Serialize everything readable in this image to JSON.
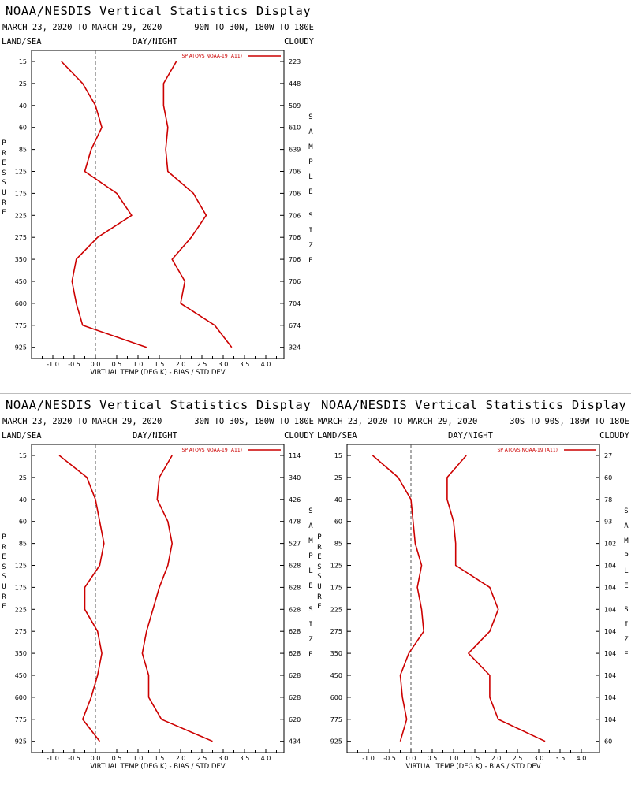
{
  "chart_data": [
    {
      "type": "line",
      "title": "NOAA/NESDIS Vertical Statistics Display",
      "date_range": "MARCH 23, 2020 TO MARCH 29, 2020",
      "region": "90N TO 30N, 180W TO 180E",
      "surface": "LAND/SEA",
      "time_of_day": "DAY/NIGHT",
      "sky": "CLOUDY",
      "xlabel": "VIRTUAL TEMP (DEG K) - BIAS / STD DEV",
      "ylabel": "PRESSURE",
      "right_label": "SAMPLE SIZE",
      "legend": "SP ATOVS NOAA-19 (A11)",
      "legend_position": "top-right",
      "xlim": [
        -1.5,
        4.5
      ],
      "x_ticks": [
        "-1.0",
        "-0.5",
        "0.0",
        "0.5",
        "1.0",
        "1.5",
        "2.0",
        "2.5",
        "3.0",
        "3.5",
        "4.0"
      ],
      "pressure_levels": [
        "15",
        "25",
        "40",
        "60",
        "85",
        "125",
        "175",
        "225",
        "275",
        "350",
        "450",
        "600",
        "775",
        "925"
      ],
      "sample_size": [
        "223",
        "448",
        "509",
        "610",
        "639",
        "706",
        "706",
        "706",
        "706",
        "706",
        "706",
        "704",
        "674",
        "324"
      ],
      "series": [
        {
          "role": "bias",
          "values": [
            -0.8,
            -0.3,
            0.0,
            0.15,
            -0.1,
            -0.25,
            0.5,
            0.85,
            0.05,
            -0.45,
            -0.55,
            -0.45,
            -0.3,
            1.2
          ]
        },
        {
          "role": "std_dev",
          "values": [
            1.9,
            1.6,
            1.6,
            1.7,
            1.65,
            1.7,
            2.3,
            2.6,
            2.25,
            1.8,
            2.1,
            2.0,
            2.8,
            3.2
          ]
        }
      ]
    },
    {
      "type": "line",
      "title": "NOAA/NESDIS Vertical Statistics Display",
      "date_range": "MARCH 23, 2020 TO MARCH 29, 2020",
      "region": "30N TO 30S, 180W TO 180E",
      "surface": "LAND/SEA",
      "time_of_day": "DAY/NIGHT",
      "sky": "CLOUDY",
      "xlabel": "VIRTUAL TEMP (DEG K) - BIAS / STD DEV",
      "ylabel": "PRESSURE",
      "right_label": "SAMPLE SIZE",
      "legend": "SP ATOVS NOAA-19 (A11)",
      "legend_position": "top-right",
      "xlim": [
        -1.5,
        4.5
      ],
      "x_ticks": [
        "-1.0",
        "-0.5",
        "0.0",
        "0.5",
        "1.0",
        "1.5",
        "2.0",
        "2.5",
        "3.0",
        "3.5",
        "4.0"
      ],
      "pressure_levels": [
        "15",
        "25",
        "40",
        "60",
        "85",
        "125",
        "175",
        "225",
        "275",
        "350",
        "450",
        "600",
        "775",
        "925"
      ],
      "sample_size": [
        "114",
        "340",
        "426",
        "478",
        "527",
        "628",
        "628",
        "628",
        "628",
        "628",
        "628",
        "628",
        "620",
        "434"
      ],
      "series": [
        {
          "role": "bias",
          "values": [
            -0.85,
            -0.2,
            0.0,
            0.1,
            0.2,
            0.1,
            -0.25,
            -0.25,
            0.05,
            0.15,
            0.05,
            -0.1,
            -0.3,
            0.1
          ]
        },
        {
          "role": "std_dev",
          "values": [
            1.8,
            1.5,
            1.45,
            1.7,
            1.8,
            1.7,
            1.5,
            1.35,
            1.2,
            1.1,
            1.25,
            1.25,
            1.55,
            2.75
          ]
        }
      ]
    },
    {
      "type": "line",
      "title": "NOAA/NESDIS Vertical Statistics Display",
      "date_range": "MARCH 23, 2020 TO MARCH 29, 2020",
      "region": "30S TO 90S, 180W TO 180E",
      "surface": "LAND/SEA",
      "time_of_day": "DAY/NIGHT",
      "sky": "CLOUDY",
      "xlabel": "VIRTUAL TEMP (DEG K) - BIAS / STD DEV",
      "ylabel": "PRESSURE",
      "right_label": "SAMPLE SIZE",
      "legend": "SP ATOVS NOAA-19 (A11)",
      "legend_position": "top-right",
      "xlim": [
        -1.5,
        4.5
      ],
      "x_ticks": [
        "-1.0",
        "-0.5",
        "0.0",
        "0.5",
        "1.0",
        "1.5",
        "2.0",
        "2.5",
        "3.0",
        "3.5",
        "4.0"
      ],
      "pressure_levels": [
        "15",
        "25",
        "40",
        "60",
        "85",
        "125",
        "175",
        "225",
        "275",
        "350",
        "450",
        "600",
        "775",
        "925"
      ],
      "sample_size": [
        "27",
        "60",
        "78",
        "93",
        "102",
        "104",
        "104",
        "104",
        "104",
        "104",
        "104",
        "104",
        "104",
        "60"
      ],
      "series": [
        {
          "role": "bias",
          "values": [
            -0.9,
            -0.3,
            0.0,
            0.05,
            0.1,
            0.25,
            0.15,
            0.25,
            0.3,
            -0.05,
            -0.25,
            -0.2,
            -0.1,
            -0.25
          ]
        },
        {
          "role": "std_dev",
          "values": [
            1.3,
            0.85,
            0.85,
            1.0,
            1.05,
            1.05,
            1.85,
            2.05,
            1.85,
            1.35,
            1.85,
            1.85,
            2.05,
            3.15
          ]
        }
      ]
    }
  ],
  "style": {
    "line_color": "#cc0000",
    "axis_color": "#000000",
    "zero_line_color": "#555555"
  }
}
